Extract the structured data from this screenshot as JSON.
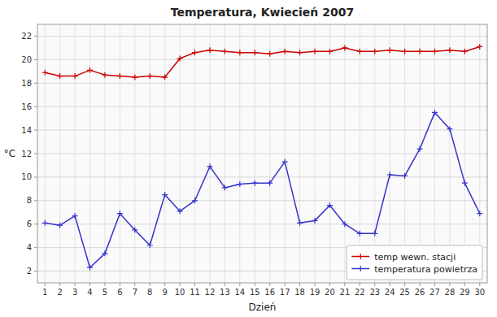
{
  "chart_data": {
    "type": "line",
    "title": "Temperatura, Kwiecień 2007",
    "x_label": "Dzień",
    "y_label": "°C",
    "x": [
      1,
      2,
      3,
      4,
      5,
      6,
      7,
      8,
      9,
      10,
      11,
      12,
      13,
      14,
      15,
      16,
      17,
      18,
      19,
      20,
      21,
      22,
      23,
      24,
      25,
      26,
      27,
      28,
      29,
      30
    ],
    "series": [
      {
        "name": "temp wewn. stacji",
        "color": "#CC0000",
        "marker": "plus",
        "values": [
          18.9,
          18.6,
          18.6,
          19.1,
          18.7,
          18.6,
          18.5,
          18.6,
          18.5,
          20.1,
          20.6,
          20.8,
          20.7,
          20.6,
          20.6,
          20.5,
          20.7,
          20.6,
          20.7,
          20.7,
          21.0,
          20.7,
          20.7,
          20.8,
          20.7,
          20.7,
          20.7,
          20.8,
          20.7,
          21.1
        ]
      },
      {
        "name": "temperatura powietrza",
        "color": "#3333CC",
        "marker": "plus",
        "values": [
          6.1,
          5.9,
          6.7,
          2.3,
          3.5,
          6.9,
          5.5,
          4.2,
          8.5,
          7.1,
          8.0,
          10.9,
          9.1,
          9.4,
          9.5,
          9.5,
          11.3,
          6.1,
          6.3,
          7.6,
          6.0,
          5.2,
          5.2,
          10.2,
          10.1,
          12.4,
          15.5,
          14.1,
          9.5,
          6.9
        ]
      }
    ],
    "xlim": [
      0.5,
      30.5
    ],
    "xticks": [
      1,
      2,
      3,
      4,
      5,
      6,
      7,
      8,
      9,
      10,
      11,
      12,
      13,
      14,
      15,
      16,
      17,
      18,
      19,
      20,
      21,
      22,
      23,
      24,
      25,
      26,
      27,
      28,
      29,
      30
    ],
    "ylim": [
      1,
      23
    ],
    "yticks": [
      2,
      4,
      6,
      8,
      10,
      12,
      14,
      16,
      18,
      20,
      22
    ],
    "grid": true,
    "legend": "lower right"
  }
}
